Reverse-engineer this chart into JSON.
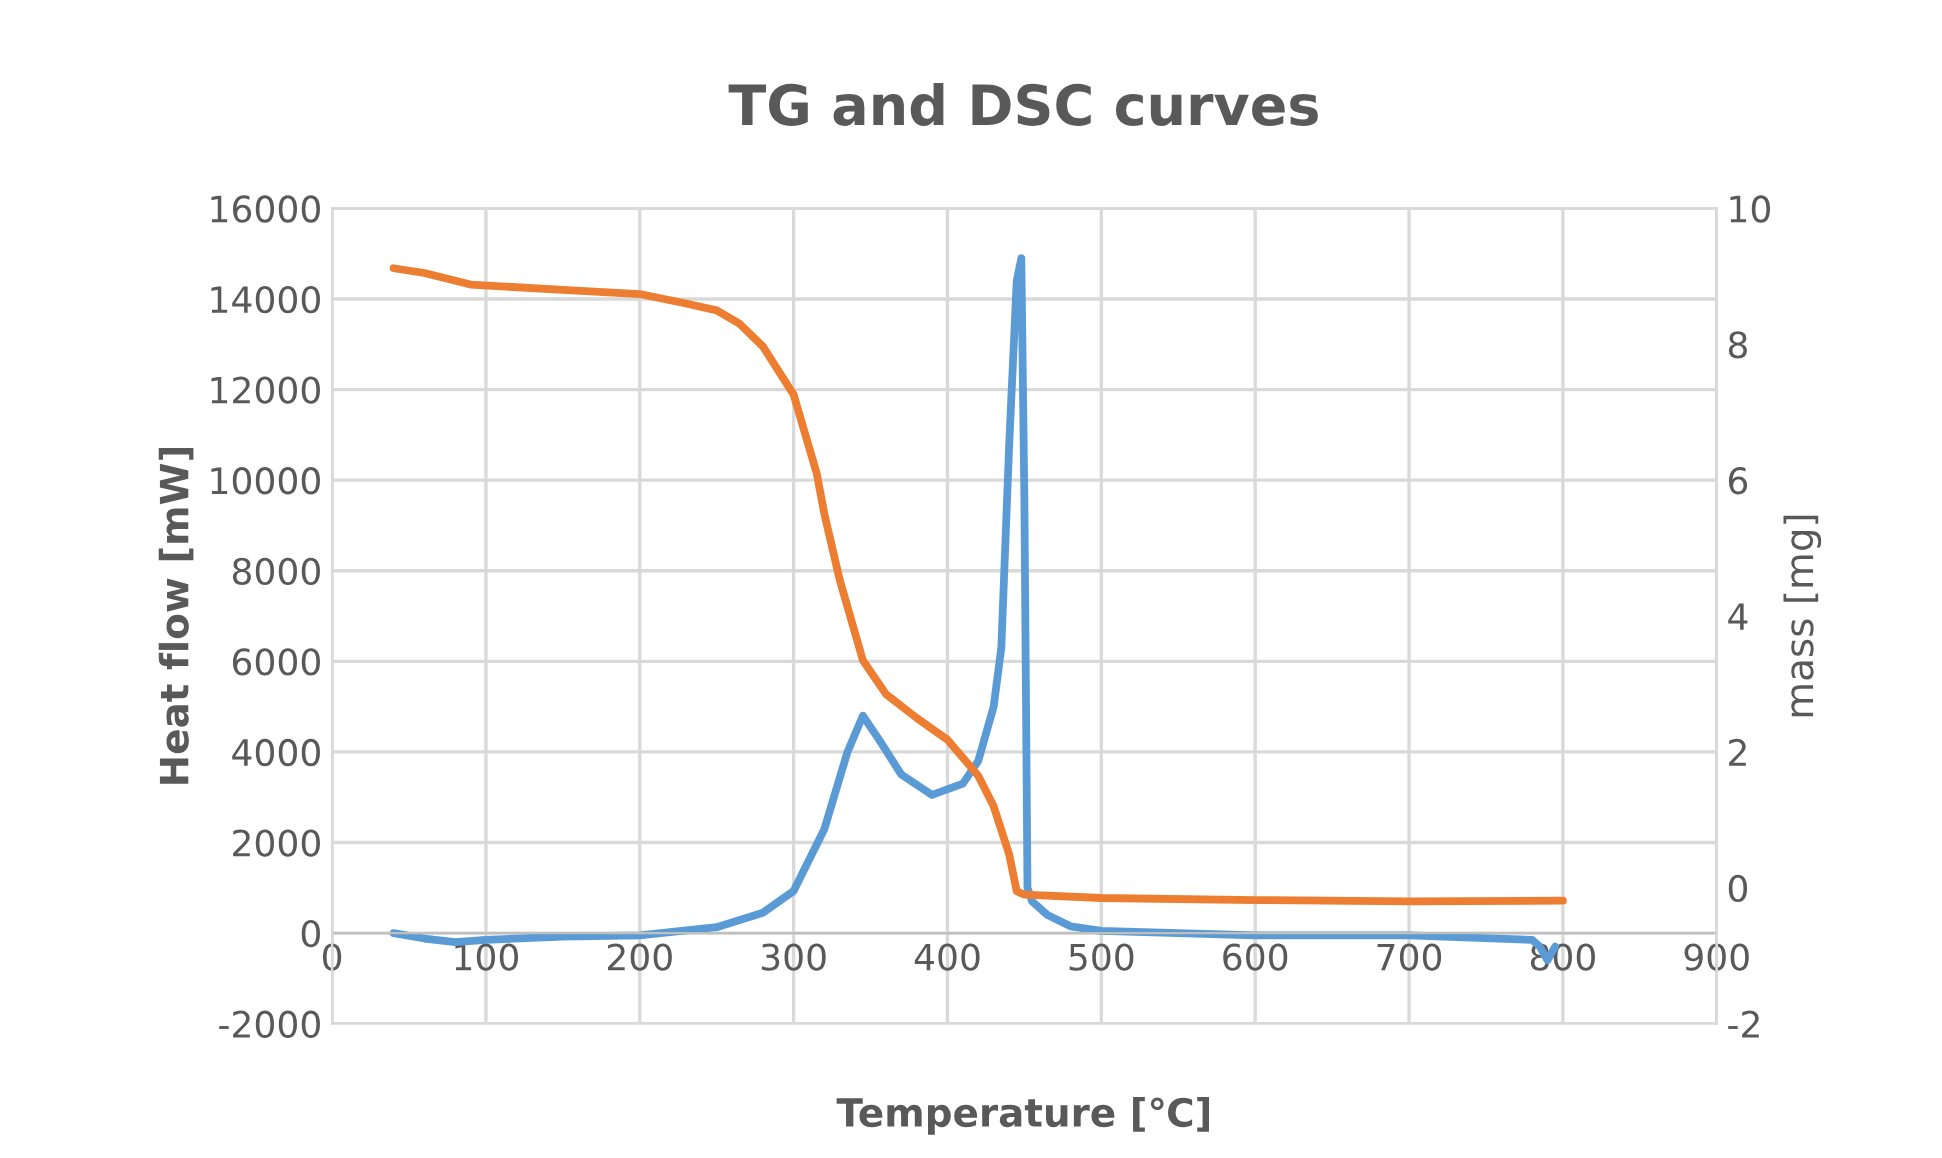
{
  "chart_data": {
    "type": "line",
    "title": "TG and DSC curves",
    "xlabel": "Temperature [℃]",
    "ylabel": "Heat flow [mW]",
    "y2label": "mass [mg]",
    "xlim": [
      0,
      900
    ],
    "xticks": [
      0,
      100,
      200,
      300,
      400,
      500,
      600,
      700,
      800,
      900
    ],
    "ylim": [
      -2000,
      16000
    ],
    "yticks": [
      -2000,
      0,
      2000,
      4000,
      6000,
      8000,
      10000,
      12000,
      14000,
      16000
    ],
    "y2lim": [
      -2,
      10
    ],
    "y2ticks": [
      -2,
      0,
      2,
      4,
      6,
      8,
      10
    ],
    "grid": true,
    "marker": "none",
    "line_style": "solid",
    "series": [
      {
        "color": "#5b9bd5",
        "x": [
          40,
          60,
          80,
          100,
          150,
          200,
          250,
          280,
          300,
          320,
          335,
          345,
          355,
          370,
          390,
          410,
          420,
          430,
          435,
          440,
          445,
          448,
          450,
          452,
          455,
          465,
          480,
          500,
          600,
          700,
          780,
          785,
          790,
          795
        ],
        "values": [
          0,
          -120,
          -200,
          -150,
          -80,
          -50,
          130,
          450,
          930,
          2300,
          4000,
          4800,
          4300,
          3500,
          3050,
          3300,
          3800,
          5000,
          6300,
          10700,
          14400,
          14900,
          9500,
          1000,
          700,
          400,
          150,
          50,
          -50,
          -50,
          -150,
          -300,
          -600,
          -300
        ]
      },
      {
        "color": "#ed7d31",
        "axis": "y2",
        "x": [
          40,
          60,
          90,
          150,
          200,
          230,
          250,
          265,
          280,
          300,
          315,
          320,
          330,
          345,
          360,
          380,
          400,
          420,
          430,
          440,
          445,
          450,
          500,
          600,
          700,
          800
        ],
        "values": [
          9.12,
          9.05,
          8.88,
          8.8,
          8.74,
          8.6,
          8.5,
          8.3,
          7.97,
          7.26,
          6.1,
          5.5,
          4.53,
          3.35,
          2.85,
          2.5,
          2.18,
          1.65,
          1.2,
          0.5,
          -0.05,
          -0.1,
          -0.15,
          -0.18,
          -0.2,
          -0.19
        ]
      }
    ]
  }
}
